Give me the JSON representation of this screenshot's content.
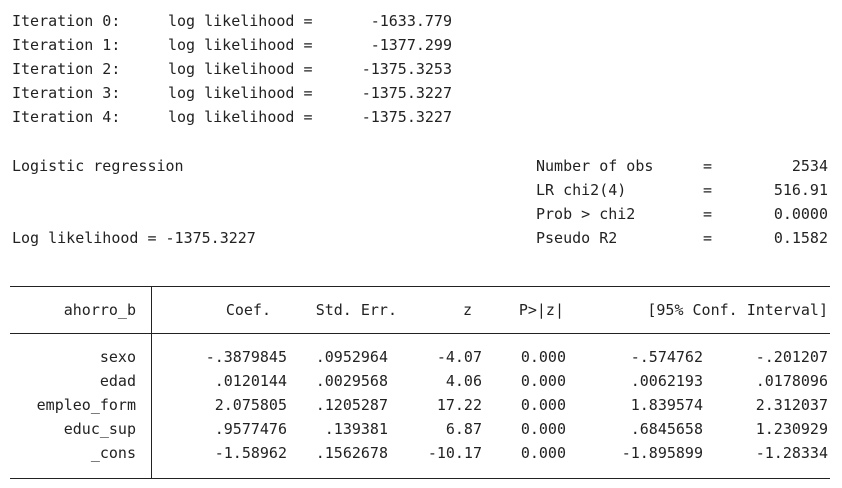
{
  "iterations": [
    {
      "label": "Iteration 0:",
      "ll_label": "log likelihood =",
      "value": "-1633.779"
    },
    {
      "label": "Iteration 1:",
      "ll_label": "log likelihood =",
      "value": "-1377.299"
    },
    {
      "label": "Iteration 2:",
      "ll_label": "log likelihood =",
      "value": "-1375.3253"
    },
    {
      "label": "Iteration 3:",
      "ll_label": "log likelihood =",
      "value": "-1375.3227"
    },
    {
      "label": "Iteration 4:",
      "ll_label": "log likelihood =",
      "value": "-1375.3227"
    }
  ],
  "model": {
    "title": "Logistic regression",
    "loglik_text": "Log likelihood = -1375.3227",
    "stats": [
      {
        "label": "Number of obs",
        "eq": "=",
        "value": "2534"
      },
      {
        "label": "LR chi2(4)",
        "eq": "=",
        "value": "516.91"
      },
      {
        "label": "Prob > chi2",
        "eq": "=",
        "value": "0.0000"
      },
      {
        "label": "Pseudo R2",
        "eq": "=",
        "value": "0.1582"
      }
    ]
  },
  "table": {
    "depvar": "ahorro_b",
    "headers": [
      "Coef.",
      "Std. Err.",
      "z",
      "P>|z|",
      "[95% Conf. Interval]"
    ],
    "rows": [
      {
        "var": "sexo",
        "coef": "-.3879845",
        "se": ".0952964",
        "z": "-4.07",
        "p": "0.000",
        "lo": "-.574762",
        "hi": "-.201207"
      },
      {
        "var": "edad",
        "coef": ".0120144",
        "se": ".0029568",
        "z": "4.06",
        "p": "0.000",
        "lo": ".0062193",
        "hi": ".0178096"
      },
      {
        "var": "empleo_form",
        "coef": "2.075805",
        "se": ".1205287",
        "z": "17.22",
        "p": "0.000",
        "lo": "1.839574",
        "hi": "2.312037"
      },
      {
        "var": "educ_sup",
        "coef": ".9577476",
        "se": ".139381",
        "z": "6.87",
        "p": "0.000",
        "lo": ".6845658",
        "hi": "1.230929"
      },
      {
        "var": "_cons",
        "coef": "-1.58962",
        "se": ".1562678",
        "z": "-10.17",
        "p": "0.000",
        "lo": "-1.895899",
        "hi": "-1.28334"
      }
    ]
  }
}
